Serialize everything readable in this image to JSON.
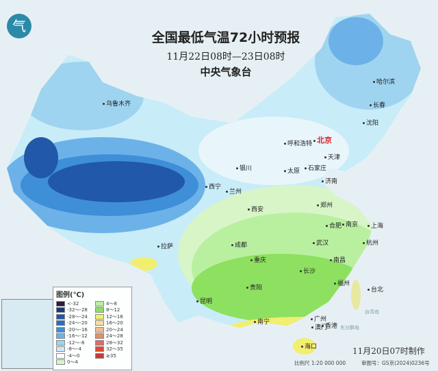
{
  "header": {
    "title": "全国最低气温72小时预报",
    "period": "11月22日08时—23日08时",
    "issuer": "中央气象台"
  },
  "logo": {
    "icon": "cma-logo",
    "glyph": "气"
  },
  "capital": "北京",
  "cities": [
    "乌鲁木齐",
    "哈尔滨",
    "长春",
    "沈阳",
    "呼和浩特",
    "天津",
    "石家庄",
    "太原",
    "银川",
    "西宁",
    "兰州",
    "济南",
    "郑州",
    "西安",
    "合肥",
    "南京",
    "上海",
    "杭州",
    "武汉",
    "成都",
    "重庆",
    "拉萨",
    "长沙",
    "南昌",
    "贵阳",
    "福州",
    "台北",
    "昆明",
    "南宁",
    "广州",
    "澳门",
    "香港",
    "海口"
  ],
  "seas": [
    "台湾岛",
    "东沙群岛"
  ],
  "legend": {
    "title": "图例(℃)",
    "items": [
      {
        "label": "<-32",
        "color": "#2a1f3a"
      },
      {
        "label": "-32～-28",
        "color": "#1c3a7a"
      },
      {
        "label": "-28～-24",
        "color": "#2158a8"
      },
      {
        "label": "-24～-20",
        "color": "#2b6cc4"
      },
      {
        "label": "-20～-16",
        "color": "#3f8ed8"
      },
      {
        "label": "-16～-12",
        "color": "#6cb2e8"
      },
      {
        "label": "-12～-8",
        "color": "#9fd4f0"
      },
      {
        "label": "-8～-4",
        "color": "#c8ecf8"
      },
      {
        "label": "-4～0",
        "color": "#ffffff"
      },
      {
        "label": "0～4",
        "color": "#d8f5c8"
      },
      {
        "label": "4～8",
        "color": "#b8f0a0"
      },
      {
        "label": "8～12",
        "color": "#8ee060"
      },
      {
        "label": "12～16",
        "color": "#f2ee70"
      },
      {
        "label": "16～20",
        "color": "#f5e0a0"
      },
      {
        "label": "20～24",
        "color": "#e8c090"
      },
      {
        "label": "24～28",
        "color": "#e0906a"
      },
      {
        "label": "28～32",
        "color": "#e06a6a"
      },
      {
        "label": "32～35",
        "color": "#e04a2a"
      },
      {
        "label": "≥35",
        "color": "#c83a3a"
      }
    ]
  },
  "footer": {
    "made": "11月20日07时制作",
    "scale": "比例尺 1:20 000 000",
    "review": "审图号：GS京(2024)0236号"
  }
}
